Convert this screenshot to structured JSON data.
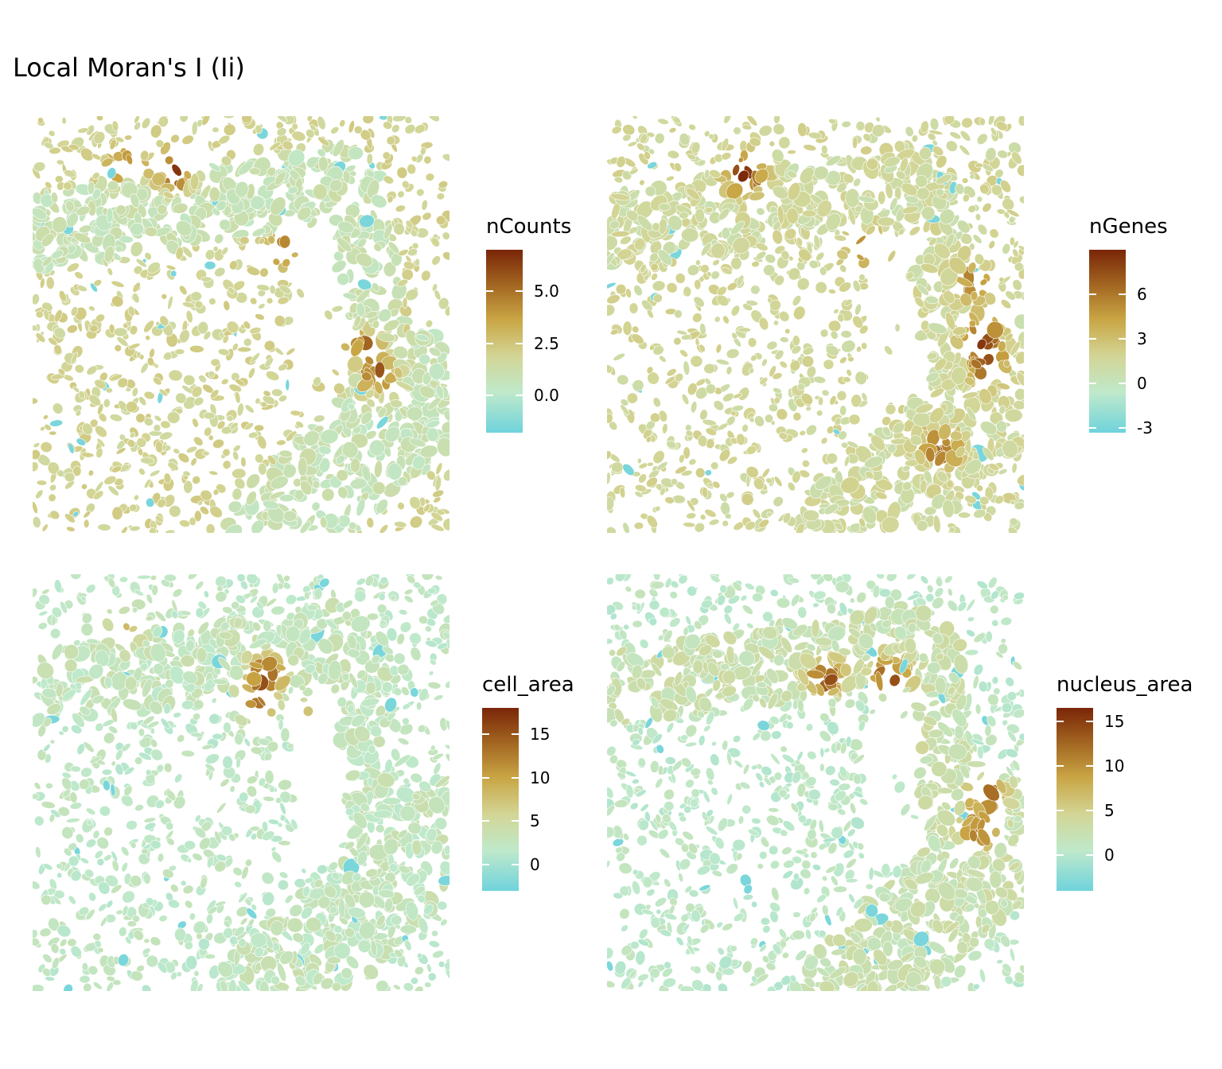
{
  "title": "Local Moran's I (Ii)",
  "colors": {
    "low": "#6fd3dc",
    "low2": "#4fb6cf",
    "mid_low": "#bfe9cb",
    "mid": "#d3d595",
    "mid_high": "#c9a544",
    "high": "#a0621f",
    "max": "#7a2508"
  },
  "chart_data": [
    {
      "type": "heatmap",
      "variable": "nCounts",
      "legend_title": "nCounts",
      "range": [
        -1.8,
        7.0
      ],
      "ticks": [
        {
          "value": 0.0,
          "label": "0.0"
        },
        {
          "value": 2.5,
          "label": "2.5"
        },
        {
          "value": 5.0,
          "label": "5.0"
        }
      ]
    },
    {
      "type": "heatmap",
      "variable": "nGenes",
      "legend_title": "nGenes",
      "range": [
        -3.3,
        9.0
      ],
      "ticks": [
        {
          "value": -3,
          "label": "-3"
        },
        {
          "value": 0,
          "label": "0"
        },
        {
          "value": 3,
          "label": "3"
        },
        {
          "value": 6,
          "label": "6"
        }
      ]
    },
    {
      "type": "heatmap",
      "variable": "cell_area",
      "legend_title": "cell_area",
      "range": [
        -3.0,
        18.0
      ],
      "ticks": [
        {
          "value": 0,
          "label": "0"
        },
        {
          "value": 5,
          "label": "5"
        },
        {
          "value": 10,
          "label": "10"
        },
        {
          "value": 15,
          "label": "15"
        }
      ]
    },
    {
      "type": "heatmap",
      "variable": "nucleus_area",
      "legend_title": "nucleus_area",
      "range": [
        -4.0,
        16.5
      ],
      "ticks": [
        {
          "value": 0,
          "label": "0"
        },
        {
          "value": 5,
          "label": "5"
        },
        {
          "value": 10,
          "label": "10"
        },
        {
          "value": 15,
          "label": "15"
        }
      ]
    }
  ]
}
